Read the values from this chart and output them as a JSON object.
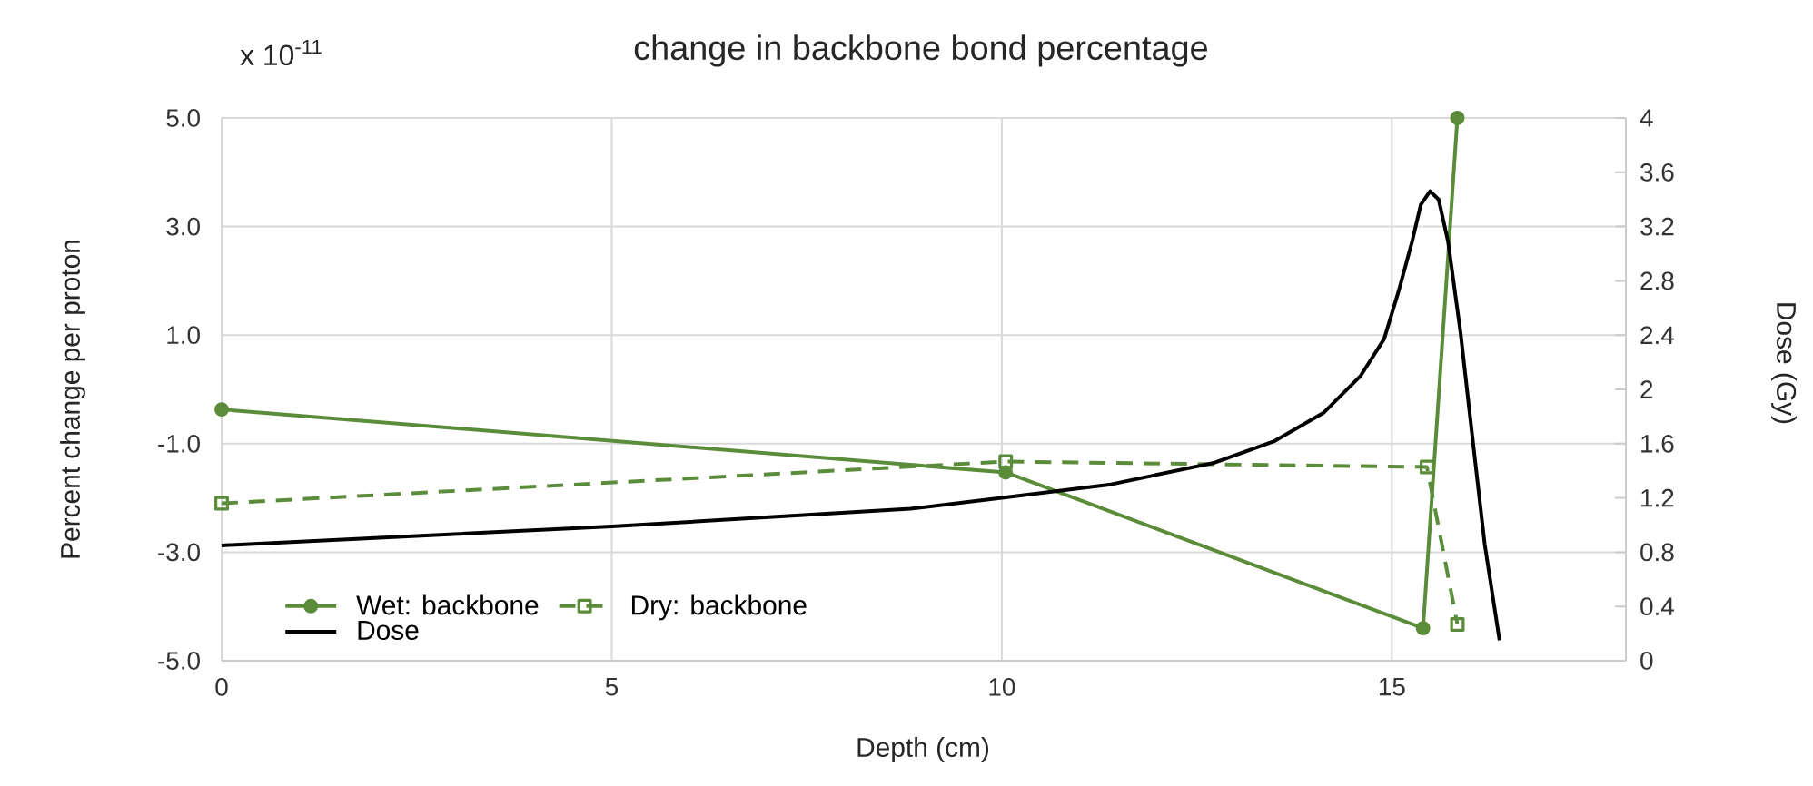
{
  "chart_data": {
    "type": "line",
    "title": "change in backbone bond percentage",
    "xlabel": "Depth (cm)",
    "ylabel": "Percent change per proton",
    "y2label": "Dose (Gy)",
    "annotations": [
      "x 10$^{-11}$"
    ],
    "xlim": [
      0,
      18
    ],
    "xticks": [
      0,
      5,
      10,
      15
    ],
    "ylim": [
      -5,
      5
    ],
    "yticks": [
      {
        "value": -5,
        "label": "-5.0"
      },
      {
        "value": -3,
        "label": "-3.0"
      },
      {
        "value": -1,
        "label": "-1.0"
      },
      {
        "value": 1,
        "label": "1.0"
      },
      {
        "value": 3,
        "label": "3.0"
      },
      {
        "value": 5,
        "label": "5.0"
      }
    ],
    "y2lim": [
      0,
      4
    ],
    "y2ticks": [
      0,
      0.4,
      0.8,
      1.2,
      1.6,
      2,
      2.4,
      2.8,
      3.2,
      3.6,
      4
    ],
    "grid": true,
    "legend": "bottom left",
    "series": [
      {
        "name": "Wet: backbone",
        "color": "#5b8c3a",
        "x": [
          0,
          10.05,
          15.4,
          15.84
        ],
        "values": [
          -0.37,
          -1.53,
          -4.4,
          5.0
        ],
        "marker": "circle",
        "line_style": "solid"
      },
      {
        "name": "Dry: backbone",
        "color": "#5b8c3a",
        "x": [
          0,
          10.05,
          15.45,
          15.84
        ],
        "values": [
          -2.1,
          -1.33,
          -1.43,
          -4.33
        ],
        "marker": "square",
        "line_style": "dashed"
      },
      {
        "name": "Dose",
        "color": "#000000",
        "axis": "y2",
        "x": [
          0,
          5,
          8.83,
          10,
          11.4,
          12.73,
          13.5,
          14.13,
          14.6,
          14.9,
          15.09,
          15.26,
          15.37,
          15.49,
          15.6,
          15.72,
          15.88,
          16.03,
          16.19,
          16.38
        ],
        "values": [
          0.85,
          0.99,
          1.12,
          1.2,
          1.3,
          1.46,
          1.62,
          1.83,
          2.1,
          2.37,
          2.73,
          3.09,
          3.36,
          3.46,
          3.4,
          3.09,
          2.42,
          1.66,
          0.86,
          0.15
        ],
        "marker": "none",
        "line_style": "solid"
      }
    ]
  }
}
